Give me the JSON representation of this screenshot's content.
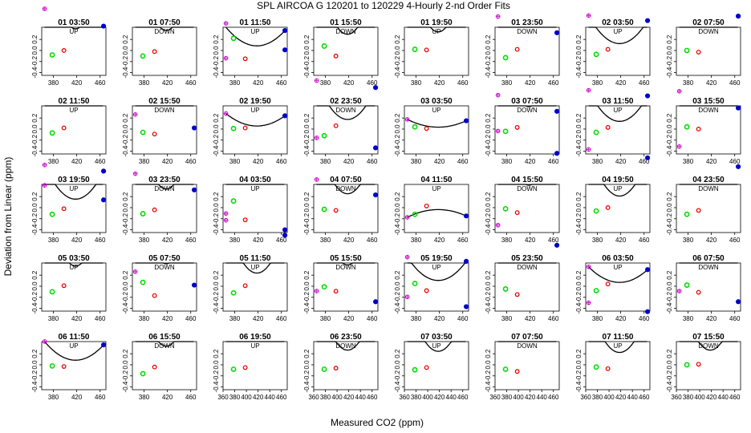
{
  "figure": {
    "title": "SPL   AIRCOA G   120201 to 120229   4-Hourly 2-nd Order Fits",
    "xlabel": "Measured CO2 (ppm)",
    "ylabel": "Deviation from Linear (ppm)"
  },
  "chart_data": {
    "type": "scatter",
    "title": "SPL   AIRCOA G   120201 to 120229   4-Hourly 2-nd Order Fits",
    "xlabel": "Measured CO2 (ppm)",
    "ylabel": "Deviation from Linear (ppm)",
    "grid": false,
    "xlim": [
      360,
      470
    ],
    "ylim": [
      -0.45,
      0.42
    ],
    "yticks": [
      -0.4,
      -0.2,
      0.0,
      0.2
    ],
    "ytick_labels": [
      "-0.4",
      "-0.2",
      "0.0",
      "0.2"
    ],
    "xticks_default": [
      380,
      420,
      460
    ],
    "xticks_bottom": [
      360,
      380,
      400,
      420,
      440,
      460
    ],
    "colors": {
      "std1": "#cc00cc",
      "std2": "#00dd00",
      "std3": "#ee0000",
      "std4": "#0000cc",
      "fit": "#000000"
    },
    "panels": [
      {
        "title": "01 03:50",
        "dir": "UP",
        "curv": 0.00056,
        "std2": -0.08,
        "std3": 0.0
      },
      {
        "title": "01 07:50",
        "dir": "DOWN",
        "curv": 0.00052,
        "std2": -0.1,
        "std3": -0.02
      },
      {
        "title": "01 11:50",
        "dir": "UP",
        "curv": 0.00012,
        "std2": 0.22,
        "std3": -0.15,
        "std1": -0.14
      },
      {
        "title": "01 15:50",
        "dir": "DOWN",
        "curv": 0.00042,
        "std2": 0.08,
        "std3": -0.1
      },
      {
        "title": "01 19:50",
        "dir": "UP",
        "curv": 0.00048,
        "std2": 0.02,
        "std3": 0.01
      },
      {
        "title": "01 23:50",
        "dir": "DOWN",
        "curv": 0.00062,
        "std2": -0.13,
        "std3": 0.02
      },
      {
        "title": "02 03:50",
        "dir": "UP",
        "curv": 0.00018,
        "std2": -0.07,
        "std3": 0.02
      },
      {
        "title": "02 07:50",
        "dir": "DOWN",
        "curv": 0.00072,
        "std2": 0.0,
        "std3": -0.03
      },
      {
        "title": "02 11:50",
        "dir": "UP",
        "curv": 0.00062,
        "std2": -0.07,
        "std3": 0.02
      },
      {
        "title": "02 15:50",
        "dir": "DOWN",
        "curv": 0.00085,
        "std2": -0.06,
        "std3": -0.09
      },
      {
        "title": "02 19:50",
        "dir": "UP",
        "curv": 8e-05,
        "std2": 0.01,
        "std3": 0.02
      },
      {
        "title": "02 23:50",
        "dir": "DOWN",
        "curv": 0.00025,
        "std2": -0.12,
        "std3": 0.06
      },
      {
        "title": "03 03:50",
        "dir": "UP",
        "curv": 5e-05,
        "std2": 0.04,
        "std3": 0.01
      },
      {
        "title": "03 07:50",
        "dir": "DOWN",
        "curv": 0.00058,
        "std2": -0.04,
        "std3": 0.03
      },
      {
        "title": "03 11:50",
        "dir": "UP",
        "curv": 0.0002,
        "std2": -0.06,
        "std3": 0.03
      },
      {
        "title": "03 15:50",
        "dir": "DOWN",
        "curv": 0.00068,
        "std2": 0.04,
        "std3": 0.0
      },
      {
        "title": "03 19:50",
        "dir": "UP",
        "curv": 0.00022,
        "std2": -0.12,
        "std3": -0.02
      },
      {
        "title": "03 23:50",
        "dir": "DOWN",
        "curv": 0.00048,
        "std2": -0.11,
        "std3": -0.04
      },
      {
        "title": "04 03:50",
        "dir": "UP",
        "curv": 0.00095,
        "std2": 0.12,
        "std3": -0.22
      },
      {
        "title": "04 07:50",
        "dir": "DOWN",
        "curv": 0.00036,
        "std2": -0.03,
        "std3": -0.05
      },
      {
        "title": "04 11:50",
        "dir": "UP",
        "curv": -5e-05,
        "std2": -0.12,
        "std3": 0.03
      },
      {
        "title": "04 15:50",
        "dir": "DOWN",
        "curv": 0.00058,
        "std2": -0.02,
        "std3": -0.09
      },
      {
        "title": "04 19:50",
        "dir": "UP",
        "curv": 0.0003,
        "std2": -0.06,
        "std3": 0.0
      },
      {
        "title": "04 23:50",
        "dir": "DOWN",
        "curv": 0.0006,
        "std2": -0.12,
        "std3": -0.05
      },
      {
        "title": "05 03:50",
        "dir": "UP",
        "curv": 0.00052,
        "std2": -0.1,
        "std3": 0.01
      },
      {
        "title": "05 07:50",
        "dir": "DOWN",
        "curv": 0.00058,
        "std2": 0.07,
        "std3": -0.17
      },
      {
        "title": "05 11:50",
        "dir": "UP",
        "curv": 0.00034,
        "std2": -0.12,
        "std3": 0.01
      },
      {
        "title": "05 15:50",
        "dir": "DOWN",
        "curv": 0.00055,
        "std2": -0.01,
        "std3": -0.09
      },
      {
        "title": "05 19:50",
        "dir": "UP",
        "curv": 0.00015,
        "std2": 0.05,
        "std3": -0.08
      },
      {
        "title": "05 23:50",
        "dir": "DOWN",
        "curv": 0.0008,
        "std2": -0.05,
        "std3": -0.15
      },
      {
        "title": "06 03:50",
        "dir": "UP",
        "curv": 0.0001,
        "std2": -0.08,
        "std3": 0.04
      },
      {
        "title": "06 07:50",
        "dir": "DOWN",
        "curv": 0.00072,
        "std2": 0.02,
        "std3": -0.11
      },
      {
        "title": "06 11:50",
        "dir": "UP",
        "curv": 0.00012,
        "std2": -0.02,
        "std3": -0.03
      },
      {
        "title": "06 15:50",
        "dir": "DOWN",
        "curv": 0.00048,
        "std2": -0.16,
        "std3": -0.04
      },
      {
        "title": "06 19:50",
        "dir": "UP",
        "curv": 0.00078,
        "std2": -0.08,
        "std3": -0.05
      },
      {
        "title": "06 23:50",
        "dir": "DOWN",
        "curv": 0.00038,
        "std2": -0.08,
        "std3": -0.06
      },
      {
        "title": "07 03:50",
        "dir": "UP",
        "curv": 0.00035,
        "std2": -0.09,
        "std3": -0.05
      },
      {
        "title": "07 07:50",
        "dir": "DOWN",
        "curv": 0.00072,
        "std2": -0.08,
        "std3": -0.12
      },
      {
        "title": "07 11:50",
        "dir": "UP",
        "curv": 0.00032,
        "std2": -0.04,
        "std3": -0.07
      },
      {
        "title": "07 15:50",
        "dir": "DOWN",
        "curv": 0.00038,
        "std2": 0.0,
        "std3": 0.01
      }
    ]
  }
}
